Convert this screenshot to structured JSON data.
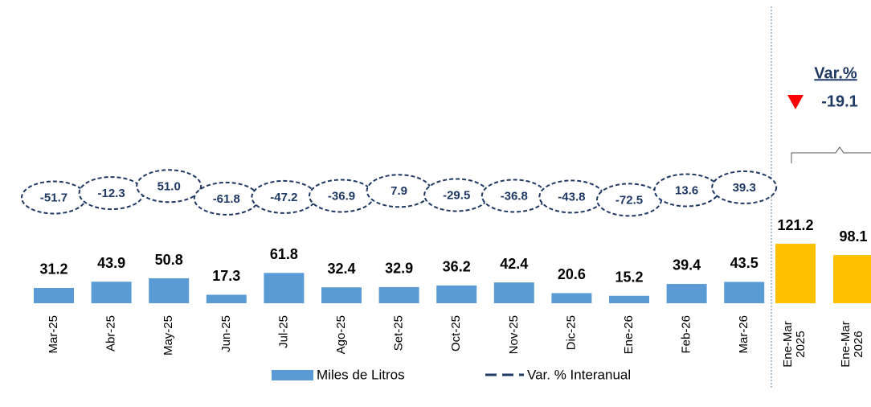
{
  "chart_data": {
    "type": "bar",
    "categories": [
      "Mar-25",
      "Abr-25",
      "May-25",
      "Jun-25",
      "Jul-25",
      "Ago-25",
      "Set-25",
      "Oct-25",
      "Nov-25",
      "Dic-25",
      "Ene-26",
      "Feb-26",
      "Mar-26",
      "Ene-Mar 2025",
      "Ene-Mar 2026"
    ],
    "series": [
      {
        "name": "Miles de Litros",
        "color": "#5b9bd5",
        "colors": [
          "#5b9bd5",
          "#5b9bd5",
          "#5b9bd5",
          "#5b9bd5",
          "#5b9bd5",
          "#5b9bd5",
          "#5b9bd5",
          "#5b9bd5",
          "#5b9bd5",
          "#5b9bd5",
          "#5b9bd5",
          "#5b9bd5",
          "#5b9bd5",
          "#ffc000",
          "#ffc000"
        ],
        "values": [
          31.2,
          43.9,
          50.8,
          17.3,
          61.8,
          32.4,
          32.9,
          36.2,
          42.4,
          20.6,
          15.2,
          39.4,
          43.5,
          121.2,
          98.1
        ]
      },
      {
        "name": "Var. % Interanual",
        "color": "#1f3864",
        "axis": "y2",
        "values": [
          -51.7,
          -12.3,
          51.0,
          -61.8,
          -47.2,
          -36.9,
          7.9,
          -29.5,
          -36.8,
          -43.8,
          -72.5,
          13.6,
          39.3,
          null,
          null
        ],
        "value_labels": [
          "-51.7",
          "-12.3",
          "51.0",
          "-61.8",
          "-47.2",
          "-36.9",
          "7.9",
          "-29.5",
          "-36.8",
          "-43.8",
          "-72.5",
          "13.6",
          "39.3",
          null,
          null
        ]
      }
    ],
    "ylim": [
      0,
      500
    ],
    "y2lim": [
      -1000,
      1200
    ],
    "annotations": {
      "title": "Var.%",
      "value": -19.1,
      "color": "#ff0000"
    }
  }
}
